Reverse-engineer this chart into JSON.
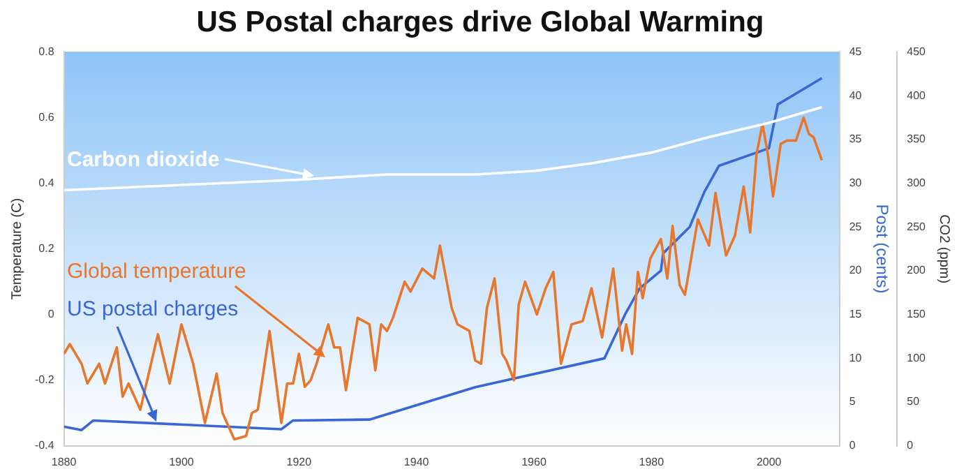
{
  "chart_data": {
    "type": "line",
    "title": "US Postal charges drive Global Warming",
    "ylabel": "Temperature (C)",
    "y2label": "Post (cents)",
    "y3label": "CO2 (ppm)",
    "xlim": [
      1880,
      2012
    ],
    "xticks": [
      1880,
      1900,
      1920,
      1940,
      1960,
      1980,
      2000
    ],
    "ylim": [
      -0.4,
      0.8
    ],
    "yticks": [
      -0.4,
      -0.2,
      0,
      0.2,
      0.4,
      0.6,
      0.8
    ],
    "y2lim": [
      0,
      45
    ],
    "y2ticks": [
      0,
      5,
      10,
      15,
      20,
      25,
      30,
      35,
      40,
      45
    ],
    "y3lim": [
      0,
      450
    ],
    "y3ticks": [
      0,
      50,
      100,
      150,
      200,
      250,
      300,
      350,
      400,
      450
    ],
    "grid": false,
    "legend": "left",
    "marker": "none",
    "series": [
      {
        "name": "Carbon dioxide",
        "color": "#ffffff",
        "axis": "y3",
        "x": [
          1880,
          1920,
          1935,
          1950,
          1960,
          1970,
          1980,
          1990,
          2000,
          2009
        ],
        "values": [
          292,
          304,
          310,
          310,
          314,
          323,
          335,
          353,
          369,
          387
        ]
      },
      {
        "name": "Global temperature",
        "color": "#e8772e",
        "x": [
          1880,
          1881,
          1883,
          1884,
          1886,
          1887,
          1889,
          1890,
          1891,
          1893,
          1896,
          1898,
          1900,
          1902,
          1904,
          1906,
          1907,
          1909,
          1911,
          1912,
          1913,
          1915,
          1917,
          1918,
          1919,
          1920,
          1921,
          1922,
          1923,
          1925,
          1926,
          1927,
          1928,
          1930,
          1932,
          1933,
          1934,
          1935,
          1936,
          1938,
          1939,
          1941,
          1943,
          1944,
          1946,
          1947,
          1949,
          1950,
          1951,
          1952,
          1953.3,
          1954.6,
          1955.3,
          1956.6,
          1957.4,
          1958.5,
          1960.5,
          1962,
          1963.3,
          1964.6,
          1966.4,
          1968.3,
          1969.8,
          1971.6,
          1973.5,
          1975,
          1975.7,
          1976.7,
          1977.7,
          1978.5,
          1979.8,
          1981.6,
          1982.7,
          1983.6,
          1984.8,
          1985.7,
          1987.9,
          1989.8,
          1990.9,
          1992.7,
          1994.2,
          1995.7,
          1996.8,
          1997.9,
          1998.9,
          1999.8,
          2000.7,
          2002,
          2003.1,
          2004.6,
          2005.9,
          2006.8,
          2007.6,
          2009
        ],
        "values": [
          -0.12,
          -0.09,
          -0.15,
          -0.21,
          -0.15,
          -0.21,
          -0.1,
          -0.25,
          -0.21,
          -0.29,
          -0.06,
          -0.21,
          -0.03,
          -0.15,
          -0.33,
          -0.18,
          -0.3,
          -0.38,
          -0.37,
          -0.3,
          -0.29,
          -0.05,
          -0.33,
          -0.21,
          -0.21,
          -0.12,
          -0.22,
          -0.2,
          -0.15,
          -0.03,
          -0.1,
          -0.1,
          -0.23,
          -0.01,
          -0.03,
          -0.17,
          -0.03,
          -0.05,
          -0.01,
          0.1,
          0.07,
          0.14,
          0.11,
          0.21,
          0.02,
          -0.03,
          -0.05,
          -0.14,
          -0.15,
          0.02,
          0.11,
          -0.12,
          -0.14,
          -0.2,
          0.03,
          0.1,
          0.0,
          0.08,
          0.13,
          -0.15,
          -0.03,
          -0.02,
          0.08,
          -0.07,
          0.14,
          -0.11,
          -0.03,
          -0.12,
          0.13,
          0.05,
          0.17,
          0.23,
          0.11,
          0.27,
          0.09,
          0.06,
          0.29,
          0.21,
          0.37,
          0.18,
          0.24,
          0.39,
          0.25,
          0.49,
          0.58,
          0.49,
          0.36,
          0.52,
          0.53,
          0.53,
          0.6,
          0.55,
          0.54,
          0.47
        ]
      },
      {
        "name": "US postal charges",
        "color": "#3a67d6",
        "axis": "y2",
        "x": [
          1880,
          1883,
          1885,
          1917,
          1919,
          1932,
          1950,
          1972,
          1975.5,
          1978,
          1981.6,
          1982,
          1986.5,
          1989,
          1991.5,
          2000,
          2001.5,
          2006.5,
          2009
        ],
        "values": [
          2.2,
          1.8,
          2.9,
          1.9,
          2.9,
          3.0,
          6.7,
          10,
          15,
          18,
          20,
          22,
          25,
          29,
          32,
          34,
          39,
          41,
          42
        ]
      }
    ]
  }
}
